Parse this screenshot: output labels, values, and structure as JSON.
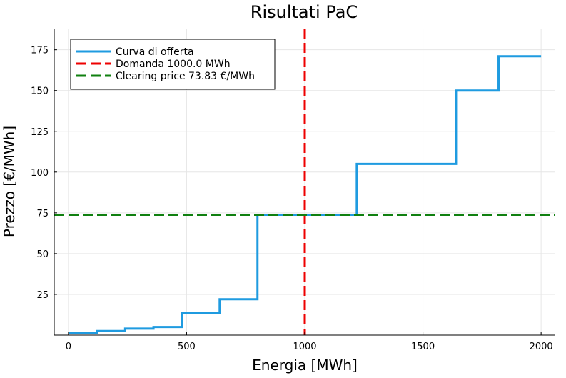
{
  "chart_data": {
    "type": "line",
    "title": "Risultati PaC",
    "xlabel": "Energia [MWh]",
    "ylabel": "Prezzo [€/MWh]",
    "xlim": [
      -60,
      2060
    ],
    "ylim": [
      0,
      188
    ],
    "xticks": [
      0,
      500,
      1000,
      1500,
      2000
    ],
    "yticks": [
      25,
      50,
      75,
      100,
      125,
      150,
      175
    ],
    "grid": true,
    "legend_position": "top-left",
    "series": [
      {
        "name": "Curva di offerta",
        "style": "step",
        "color": "#1f9be0",
        "x": [
          0,
          120,
          240,
          360,
          480,
          640,
          800,
          1220,
          1640,
          1820,
          2000
        ],
        "y": [
          1.5,
          2.5,
          4,
          5,
          13.5,
          22,
          73.83,
          105,
          150,
          171,
          171
        ]
      },
      {
        "name": "Domanda 1000.0 MWh",
        "style": "dashed-vertical",
        "color": "#ee0000",
        "x": 1000
      },
      {
        "name": "Clearing price 73.83 €/MWh",
        "style": "dashed-horizontal",
        "color": "#108010",
        "y": 73.83
      }
    ]
  }
}
